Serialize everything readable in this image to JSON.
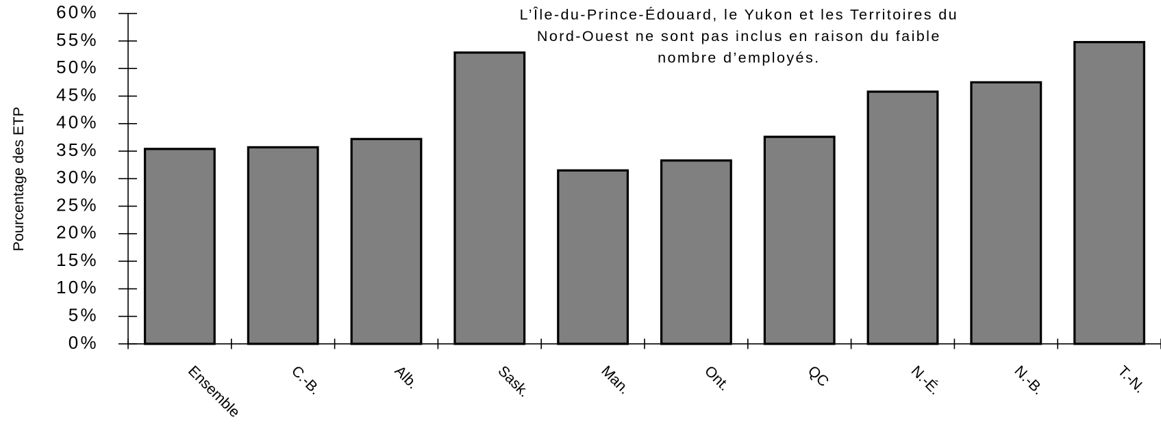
{
  "chart_data": {
    "type": "bar",
    "y_axis_label": "Pourcentage des ETP",
    "annotations": [
      "L’Île-du-Prince-Édouard, le Yukon et les Territoires du",
      "Nord-Ouest ne sont pas inclus en raison du faible",
      "nombre d’employés."
    ],
    "categories": [
      "Ensemble",
      "C.-B.",
      "Alb.",
      "Sask.",
      "Man.",
      "Ont.",
      "QC",
      "N.-É.",
      "N.-B.",
      "T.-N."
    ],
    "values": [
      35.4,
      35.7,
      37.2,
      52.9,
      31.5,
      33.3,
      37.6,
      45.8,
      47.5,
      54.8
    ],
    "color": "#808080",
    "ylim": [
      0,
      60
    ],
    "yticks": [
      {
        "value": 0,
        "label": "0%"
      },
      {
        "value": 5,
        "label": "5%"
      },
      {
        "value": 10,
        "label": "10%"
      },
      {
        "value": 15,
        "label": "15%"
      },
      {
        "value": 20,
        "label": "20%"
      },
      {
        "value": 25,
        "label": "25%"
      },
      {
        "value": 30,
        "label": "30%"
      },
      {
        "value": 35,
        "label": "35%"
      },
      {
        "value": 40,
        "label": "40%"
      },
      {
        "value": 45,
        "label": "45%"
      },
      {
        "value": 50,
        "label": "50%"
      },
      {
        "value": 55,
        "label": "55%"
      },
      {
        "value": 60,
        "label": "60%"
      }
    ],
    "grid": false
  }
}
